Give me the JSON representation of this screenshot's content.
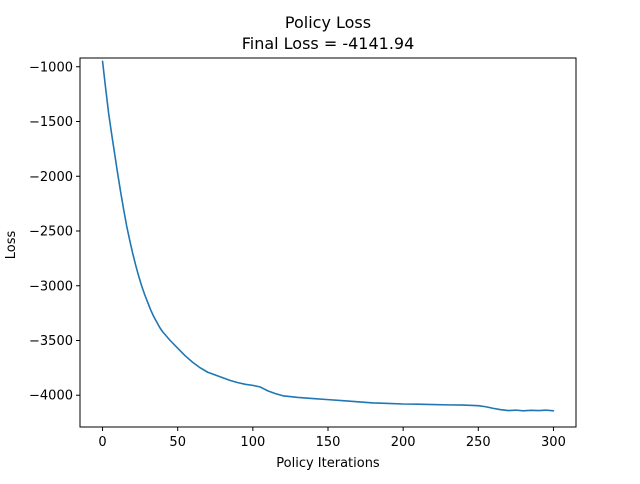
{
  "chart_data": {
    "type": "line",
    "title": "Policy Loss",
    "subtitle": "Final Loss = -4141.94",
    "xlabel": "Policy Iterations",
    "ylabel": "Loss",
    "xlim": [
      -15,
      315
    ],
    "ylim": [
      -4290,
      -920
    ],
    "xticks": [
      0,
      50,
      100,
      150,
      200,
      250,
      300
    ],
    "yticks": [
      -1000,
      -1500,
      -2000,
      -2500,
      -3000,
      -3500,
      -4000
    ],
    "xtick_labels": [
      "0",
      "50",
      "100",
      "150",
      "200",
      "250",
      "300"
    ],
    "ytick_labels": [
      "−1000",
      "−1500",
      "−2000",
      "−2500",
      "−3000",
      "−3500",
      "−4000"
    ],
    "grid": false,
    "series": [
      {
        "color": "#1f77b4",
        "x": [
          0,
          2,
          4,
          6,
          8,
          10,
          12,
          14,
          16,
          18,
          20,
          22,
          24,
          26,
          28,
          30,
          32,
          34,
          36,
          38,
          40,
          45,
          50,
          55,
          60,
          65,
          70,
          75,
          80,
          85,
          90,
          95,
          100,
          105,
          110,
          115,
          120,
          130,
          140,
          150,
          160,
          170,
          180,
          190,
          200,
          210,
          220,
          230,
          240,
          250,
          255,
          260,
          265,
          270,
          275,
          280,
          285,
          290,
          295,
          300
        ],
        "y": [
          -950,
          -1190,
          -1420,
          -1610,
          -1790,
          -1970,
          -2140,
          -2300,
          -2450,
          -2580,
          -2700,
          -2810,
          -2910,
          -3000,
          -3080,
          -3150,
          -3220,
          -3280,
          -3330,
          -3380,
          -3420,
          -3500,
          -3570,
          -3640,
          -3700,
          -3750,
          -3790,
          -3815,
          -3840,
          -3865,
          -3885,
          -3900,
          -3910,
          -3925,
          -3960,
          -3985,
          -4005,
          -4020,
          -4030,
          -4040,
          -4050,
          -4060,
          -4070,
          -4075,
          -4080,
          -4082,
          -4085,
          -4088,
          -4090,
          -4095,
          -4105,
          -4120,
          -4132,
          -4140,
          -4136,
          -4142,
          -4138,
          -4140,
          -4136,
          -4142
        ]
      }
    ]
  }
}
